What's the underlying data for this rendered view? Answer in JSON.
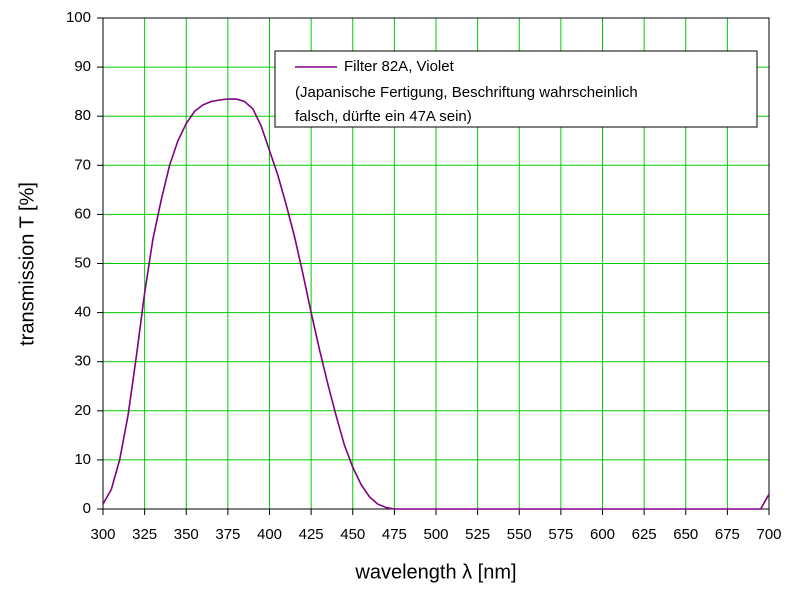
{
  "chart_data": {
    "type": "line",
    "xlabel": "wavelength λ [nm]",
    "ylabel": "transmission T [%]",
    "x": [
      300,
      305,
      310,
      315,
      320,
      325,
      330,
      335,
      340,
      345,
      350,
      355,
      360,
      365,
      370,
      375,
      380,
      385,
      390,
      395,
      400,
      405,
      410,
      415,
      420,
      425,
      430,
      435,
      440,
      445,
      450,
      455,
      460,
      465,
      470,
      475,
      480,
      485,
      490,
      495,
      500,
      505,
      510,
      515,
      520,
      525,
      530,
      535,
      540,
      545,
      550,
      555,
      560,
      565,
      570,
      575,
      580,
      585,
      590,
      595,
      600,
      605,
      610,
      615,
      620,
      625,
      630,
      635,
      640,
      645,
      650,
      655,
      660,
      665,
      670,
      675,
      680,
      685,
      690,
      695,
      700
    ],
    "series": [
      {
        "name": "Filter 82A, Violet",
        "color": "#800080",
        "values": [
          1,
          4,
          10,
          19,
          31,
          44,
          55,
          63,
          70,
          75,
          78.5,
          81,
          82.3,
          83,
          83.3,
          83.5,
          83.5,
          83,
          81.5,
          78,
          73,
          68,
          62,
          55.5,
          48,
          40,
          32.5,
          25.5,
          19,
          13,
          8.5,
          5,
          2.5,
          1,
          0.3,
          0,
          0,
          0,
          0,
          0,
          0,
          0,
          0,
          0,
          0,
          0,
          0,
          0,
          0,
          0,
          0,
          0,
          0,
          0,
          0,
          0,
          0,
          0,
          0,
          0,
          0,
          0,
          0,
          0,
          0,
          0,
          0,
          0,
          0,
          0,
          0,
          0,
          0,
          0,
          0,
          0,
          0,
          0,
          0,
          0,
          3
        ]
      }
    ],
    "legend_note": [
      "(Japanische Fertigung, Beschriftung wahrscheinlich",
      "falsch, dürfte ein 47A sein)"
    ],
    "xlim": [
      300,
      700
    ],
    "xticks": [
      300,
      325,
      350,
      375,
      400,
      425,
      450,
      475,
      500,
      525,
      550,
      575,
      600,
      625,
      650,
      675,
      700
    ],
    "ylim": [
      0,
      100
    ],
    "yticks": [
      0,
      10,
      20,
      30,
      40,
      50,
      60,
      70,
      80,
      90,
      100
    ],
    "grid": true,
    "grid_color": "#00cc00",
    "legend": "upper right"
  }
}
